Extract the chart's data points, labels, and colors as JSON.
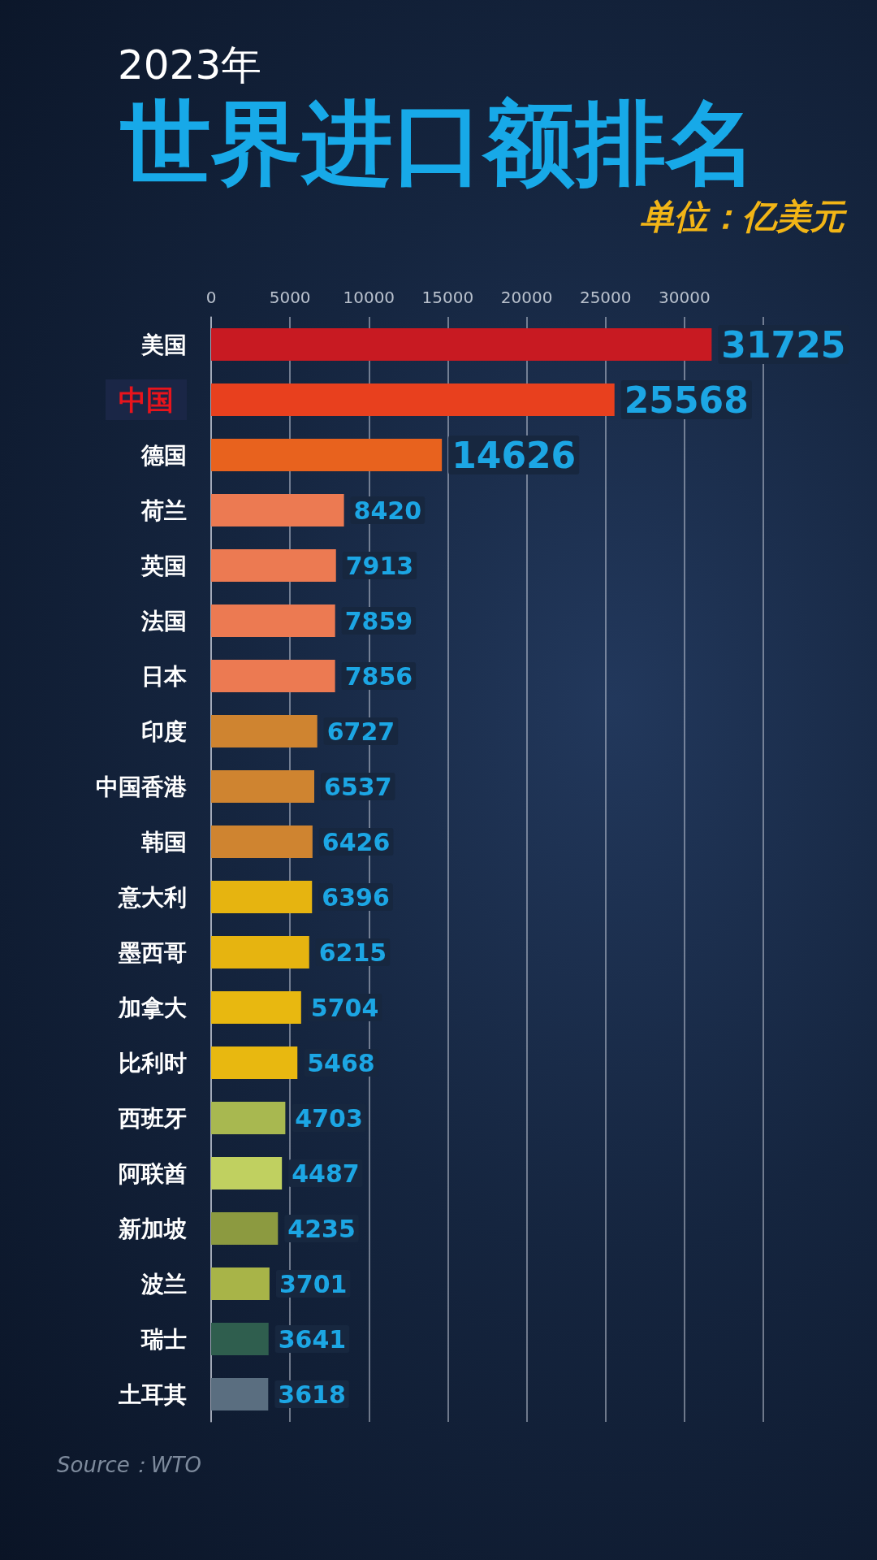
{
  "chart_data": {
    "type": "bar",
    "orientation": "horizontal",
    "title": "世界进口额排名",
    "subtitle": "2023年",
    "categories": [
      "美国",
      "中国",
      "德国",
      "荷兰",
      "英国",
      "法国",
      "日本",
      "印度",
      "中国香港",
      "韩国",
      "意大利",
      "墨西哥",
      "加拿大",
      "比利时",
      "西班牙",
      "阿联酋",
      "新加坡",
      "波兰",
      "瑞士",
      "土耳其"
    ],
    "values": [
      31725,
      25568,
      14626,
      8420,
      7913,
      7859,
      7856,
      6727,
      6537,
      6426,
      6396,
      6215,
      5704,
      5468,
      4703,
      4487,
      4235,
      3701,
      3641,
      3618
    ],
    "colors": [
      "#c81a22",
      "#e8401e",
      "#e8621e",
      "#ec7a52",
      "#ec7a52",
      "#ec7a52",
      "#ec7a52",
      "#cf8430",
      "#cf8430",
      "#cf8430",
      "#e6b410",
      "#e6b410",
      "#e8b810",
      "#e8b810",
      "#a8b850",
      "#c0d060",
      "#8c9a40",
      "#a8b448",
      "#2f5e4e",
      "#5a6e80"
    ],
    "xlim": [
      0,
      35000
    ],
    "xticks": [
      0,
      5000,
      10000,
      15000,
      20000,
      25000,
      30000,
      {
        "value": 35000,
        "label": null
      }
    ],
    "grid": "x",
    "data_labels": true,
    "annotations": [
      "单位：亿美元",
      "Source：WTO"
    ]
  }
}
